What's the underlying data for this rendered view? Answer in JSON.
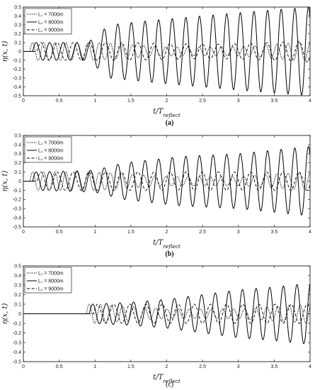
{
  "chart_data": [
    {
      "type": "line",
      "caption": "(a)",
      "xlabel": "t/T_reflect",
      "ylabel": "η(x, t)",
      "xlim": [
        0,
        4
      ],
      "ylim": [
        -0.5,
        0.5
      ],
      "xticks": [
        "0",
        "0.5",
        "1",
        "1.5",
        "2",
        "2.5",
        "3",
        "3.5",
        "4"
      ],
      "yticks": [
        "0.5",
        "0.4",
        "0.3",
        "0.2",
        "0.1",
        "0",
        "-0.1",
        "-0.2",
        "-0.3",
        "-0.4",
        "-0.5"
      ],
      "grid": false,
      "legend": "top-left",
      "series": [
        {
          "name": "L₁ = 7000m",
          "style": "dotted",
          "amplitude_points": [
            [
              0.1,
              0.1
            ],
            [
              1.0,
              0.1
            ],
            [
              2.0,
              0.05
            ],
            [
              3.0,
              0.05
            ],
            [
              3.8,
              0.1
            ],
            [
              4.0,
              0.1
            ]
          ]
        },
        {
          "name": "L₁ = 8000m",
          "style": "solid",
          "amplitude_points": [
            [
              0.2,
              0.1
            ],
            [
              0.9,
              0.1
            ],
            [
              1.2,
              0.3
            ],
            [
              1.8,
              0.35
            ],
            [
              2.5,
              0.4
            ],
            [
              3.2,
              0.45
            ],
            [
              4.0,
              0.5
            ]
          ]
        },
        {
          "name": "L₁ = 9000m",
          "style": "dashed",
          "amplitude_points": [
            [
              0.25,
              0.1
            ],
            [
              1.0,
              0.1
            ],
            [
              1.4,
              0.1
            ],
            [
              2.6,
              0.08
            ],
            [
              3.5,
              0.1
            ],
            [
              4.0,
              0.12
            ]
          ]
        }
      ]
    },
    {
      "type": "line",
      "caption": "(b)",
      "xlabel": "t/T_reflect",
      "ylabel": "η(x, t)",
      "xlim": [
        0,
        4
      ],
      "ylim": [
        -0.5,
        0.5
      ],
      "xticks": [
        "0",
        "0.5",
        "1",
        "1.5",
        "2",
        "2.5",
        "3",
        "3.5",
        "4"
      ],
      "yticks": [
        "0.5",
        "0.4",
        "0.3",
        "0.2",
        "0.1",
        "0",
        "-0.1",
        "-0.2",
        "-0.3",
        "-0.4",
        "-0.5"
      ],
      "grid": false,
      "legend": "top-left",
      "series": [
        {
          "name": "L₁ = 7000m",
          "style": "dotted",
          "amplitude_points": [
            [
              0.1,
              0.1
            ],
            [
              1.0,
              0.1
            ],
            [
              2.0,
              0.05
            ],
            [
              3.0,
              0.05
            ],
            [
              4.0,
              0.1
            ]
          ]
        },
        {
          "name": "L₁ = 8000m",
          "style": "solid",
          "amplitude_points": [
            [
              0.2,
              0.1
            ],
            [
              1.0,
              0.12
            ],
            [
              1.4,
              0.2
            ],
            [
              2.2,
              0.27
            ],
            [
              3.0,
              0.3
            ],
            [
              4.0,
              0.38
            ]
          ]
        },
        {
          "name": "L₁ = 9000m",
          "style": "dashed",
          "amplitude_points": [
            [
              0.25,
              0.1
            ],
            [
              1.0,
              0.1
            ],
            [
              2.0,
              0.1
            ],
            [
              3.0,
              0.1
            ],
            [
              4.0,
              0.1
            ]
          ]
        }
      ]
    },
    {
      "type": "line",
      "caption": "(c)",
      "xlabel": "t/T_reflect",
      "ylabel": "η(x, t)",
      "xlim": [
        0,
        4
      ],
      "ylim": [
        -0.5,
        0.5
      ],
      "xticks": [
        "0",
        "0.5",
        "1",
        "1.5",
        "2",
        "2.5",
        "3",
        "3.5",
        "4"
      ],
      "yticks": [
        "0.5",
        "0.4",
        "0.3",
        "0.2",
        "0.1",
        "0",
        "-0.1",
        "-0.2",
        "-0.3",
        "-0.4",
        "-0.5"
      ],
      "grid": false,
      "legend": "top-left",
      "series": [
        {
          "name": "L₁ = 7000m",
          "style": "dotted",
          "amplitude_points": [
            [
              1.0,
              0.1
            ],
            [
              2.0,
              0.05
            ],
            [
              3.0,
              0.05
            ],
            [
              4.0,
              0.1
            ]
          ]
        },
        {
          "name": "L₁ = 8000m",
          "style": "solid",
          "amplitude_points": [
            [
              0.95,
              0.1
            ],
            [
              1.5,
              0.12
            ],
            [
              2.0,
              0.15
            ],
            [
              2.5,
              0.2
            ],
            [
              3.0,
              0.25
            ],
            [
              3.5,
              0.28
            ],
            [
              4.0,
              0.32
            ]
          ]
        },
        {
          "name": "L₁ = 9000m",
          "style": "dashed",
          "amplitude_points": [
            [
              1.0,
              0.1
            ],
            [
              2.0,
              0.1
            ],
            [
              3.0,
              0.1
            ],
            [
              4.0,
              0.1
            ]
          ]
        }
      ]
    }
  ]
}
